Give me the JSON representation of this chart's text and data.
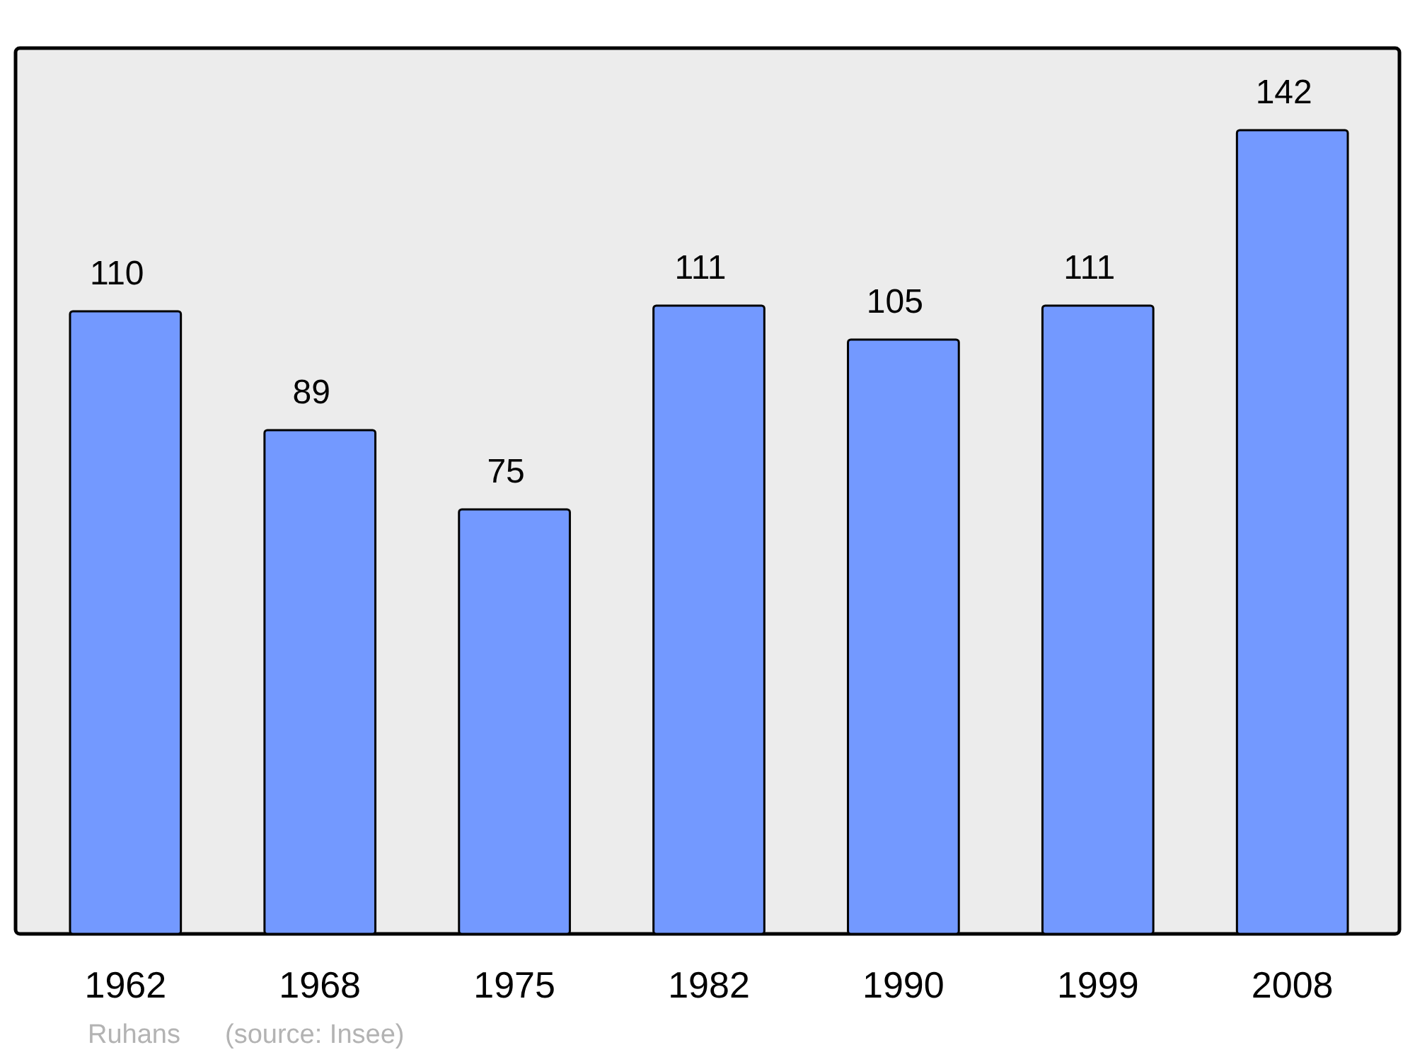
{
  "chart_data": {
    "type": "bar",
    "categories": [
      "1962",
      "1968",
      "1975",
      "1982",
      "1990",
      "1999",
      "2008"
    ],
    "values": [
      110,
      89,
      75,
      111,
      105,
      111,
      142
    ],
    "color": "#7399ff",
    "data_labels": true,
    "annotations": [
      "Ruhans",
      "(source: Insee)"
    ]
  }
}
